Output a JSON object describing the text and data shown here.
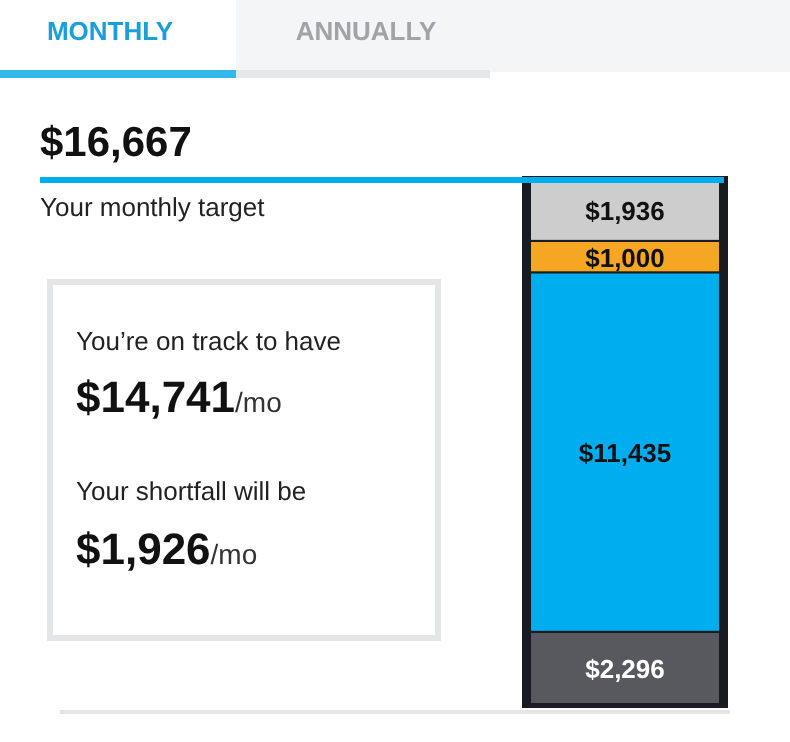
{
  "chart_data": {
    "type": "bar",
    "stacked": true,
    "categories": [
      null
    ],
    "series": [
      {
        "color": "#58585f",
        "values": [
          2296
        ],
        "value_labels": [
          "$2,296"
        ]
      },
      {
        "color": "#00aeef",
        "values": [
          11435
        ],
        "value_labels": [
          "$11,435"
        ]
      },
      {
        "color": "#f5a623",
        "values": [
          1000
        ],
        "value_labels": [
          "$1,000"
        ]
      },
      {
        "color": "#cdcdcd",
        "values": [
          1936
        ],
        "value_labels": [
          "$1,936"
        ]
      }
    ],
    "ref_lines": [
      {
        "axis": "y",
        "value": 16667,
        "label": "$16,667",
        "color": "#00aeef"
      }
    ],
    "annotations": [
      "MONTHLY",
      "ANNUALLY",
      "Your monthly target",
      "You’re on track to have",
      "$14,741/mo",
      "Your shortfall will be",
      "$1,926/mo"
    ]
  }
}
